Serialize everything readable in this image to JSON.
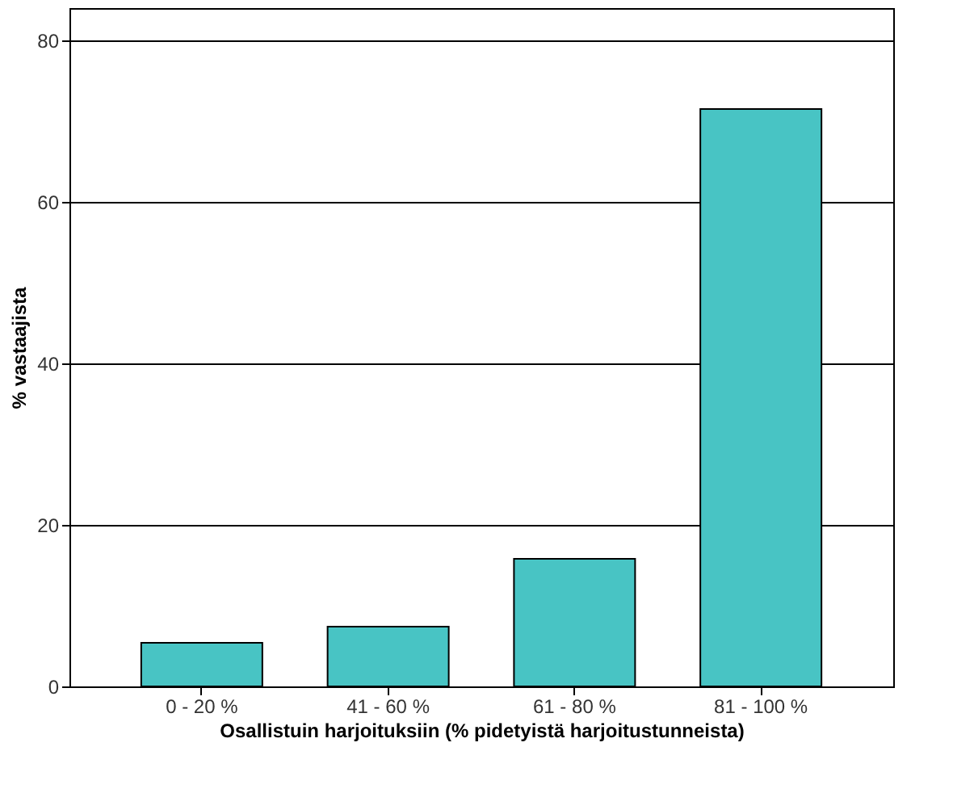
{
  "chart_data": {
    "type": "bar",
    "xlabel": "Osallistuin harjoituksiin (% pidetyistä harjoitustunneista)",
    "ylabel": "% vastaajista",
    "categories": [
      "0 - 20 %",
      "41 - 60 %",
      "61 - 80 %",
      "81 - 100 %"
    ],
    "series": [
      {
        "color": "#48c4c4",
        "values": [
          5.4,
          7.4,
          15.8,
          71.5
        ]
      }
    ],
    "ylim": [
      0,
      84
    ],
    "yticks": [
      0,
      20,
      40,
      60,
      80
    ],
    "grid": "y"
  }
}
